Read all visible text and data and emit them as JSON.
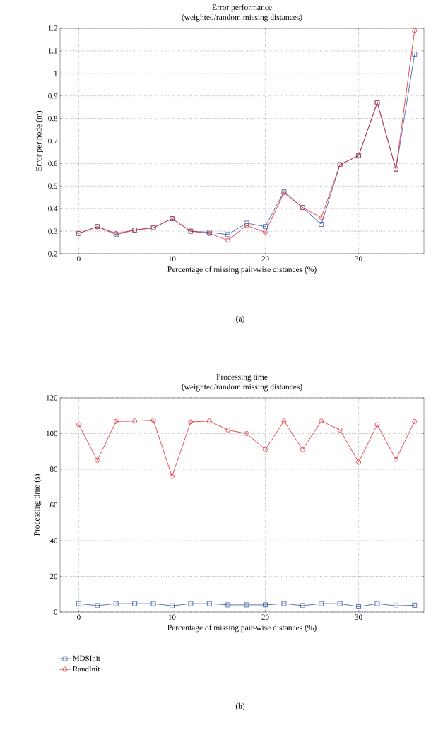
{
  "chart_data": [
    {
      "type": "line",
      "title": "Error performance",
      "subtitle": "(weighted/random missing distances)",
      "xlabel": "Percentage of missing pair-wise distances (%)",
      "ylabel": "Error per node (m)",
      "annotations": [
        "(a)"
      ],
      "x": [
        0,
        2,
        4,
        6,
        8,
        10,
        12,
        14,
        16,
        18,
        20,
        22,
        24,
        26,
        28,
        30,
        32,
        34,
        36
      ],
      "series": [
        {
          "color": "#3050a0",
          "marker": "square",
          "values": [
            0.29,
            0.32,
            0.285,
            0.305,
            0.315,
            0.355,
            0.3,
            0.295,
            0.285,
            0.335,
            0.32,
            0.475,
            0.405,
            0.33,
            0.595,
            0.635,
            0.87,
            0.575,
            1.085
          ]
        },
        {
          "color": "#e8202a",
          "marker": "circle",
          "values": [
            0.29,
            0.32,
            0.29,
            0.305,
            0.315,
            0.355,
            0.3,
            0.29,
            0.26,
            0.325,
            0.295,
            0.47,
            0.405,
            0.36,
            0.595,
            0.635,
            0.87,
            0.575,
            1.19
          ]
        }
      ],
      "xlim": [
        -2,
        37
      ],
      "ylim": [
        0.2,
        1.2
      ],
      "xticks": [
        0,
        10,
        20,
        30
      ],
      "yticks": [
        0.2,
        0.3,
        0.4,
        0.5,
        0.6,
        0.7,
        0.8,
        0.9,
        1,
        1.1,
        1.2
      ],
      "grid": true
    },
    {
      "type": "line",
      "title": "Processing time",
      "subtitle": "(weighted/random missing distances)",
      "xlabel": "Percentage of missing pair-wise distances (%)",
      "ylabel": "Processing time (s)",
      "annotations": [
        "(b)"
      ],
      "x": [
        0,
        2,
        4,
        6,
        8,
        10,
        12,
        14,
        16,
        18,
        20,
        22,
        24,
        26,
        28,
        30,
        32,
        34,
        36
      ],
      "series": [
        {
          "name": "MDSInit",
          "color": "#3050a0",
          "marker": "square",
          "values": [
            4.7,
            3.6,
            4.7,
            4.7,
            4.7,
            3.5,
            4.7,
            4.7,
            4,
            4,
            4,
            4.7,
            3.6,
            4.7,
            4.7,
            3,
            4.7,
            3.5,
            3.8
          ]
        },
        {
          "name": "RandInit",
          "color": "#e8202a",
          "marker": "circle",
          "values": [
            105,
            85,
            106.8,
            107,
            107.5,
            76,
            106.5,
            107,
            102,
            100,
            91,
            107,
            91,
            107,
            102,
            84,
            105,
            85.5,
            106.8
          ]
        }
      ],
      "xlim": [
        -2,
        37
      ],
      "ylim": [
        0,
        120
      ],
      "xticks": [
        0,
        10,
        20,
        30
      ],
      "yticks": [
        0,
        20,
        40,
        60,
        80,
        100,
        120
      ],
      "grid": true,
      "legend": "bottom left"
    }
  ]
}
